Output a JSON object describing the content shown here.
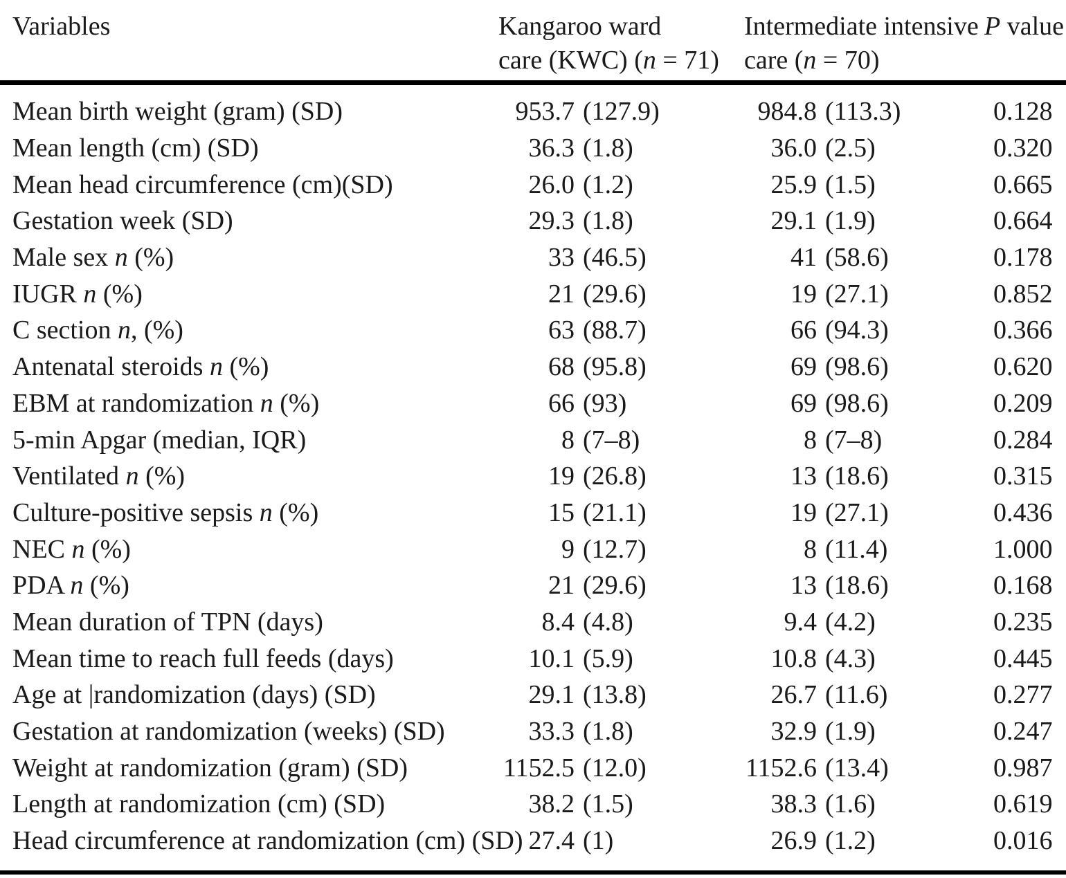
{
  "table": {
    "header": {
      "variables": "Variables",
      "kwc_line1": "Kangaroo ward",
      "kwc_line2_pre": "care (KWC) (",
      "kwc_n": "n",
      "kwc_line2_post": " = 71)",
      "iic_line1": "Intermediate intensive",
      "iic_line2_pre": "care (",
      "iic_n": "n",
      "iic_line2_post": " = 70)",
      "p_italic": "P",
      "p_rest": " value"
    },
    "rows": [
      {
        "label_pre": "Mean birth weight (gram) (SD)",
        "label_n": "",
        "label_post": "",
        "kwc_num": "953.7",
        "kwc_paren": "(127.9)",
        "iic_num": "984.8",
        "iic_paren": "(113.3)",
        "p": "0.128"
      },
      {
        "label_pre": "Mean length (cm) (SD)",
        "label_n": "",
        "label_post": "",
        "kwc_num": "36.3",
        "kwc_paren": "(1.8)",
        "iic_num": "36.0",
        "iic_paren": "(2.5)",
        "p": "0.320"
      },
      {
        "label_pre": "Mean head circumference (cm)(SD)",
        "label_n": "",
        "label_post": "",
        "kwc_num": "26.0",
        "kwc_paren": "(1.2)",
        "iic_num": "25.9",
        "iic_paren": "(1.5)",
        "p": "0.665"
      },
      {
        "label_pre": "Gestation week (SD)",
        "label_n": "",
        "label_post": "",
        "kwc_num": "29.3",
        "kwc_paren": "(1.8)",
        "iic_num": "29.1",
        "iic_paren": "(1.9)",
        "p": "0.664"
      },
      {
        "label_pre": "Male sex ",
        "label_n": "n",
        "label_post": " (%)",
        "kwc_num": "33",
        "kwc_paren": "(46.5)",
        "iic_num": "41",
        "iic_paren": "(58.6)",
        "p": "0.178"
      },
      {
        "label_pre": "IUGR ",
        "label_n": "n",
        "label_post": " (%)",
        "kwc_num": "21",
        "kwc_paren": "(29.6)",
        "iic_num": "19",
        "iic_paren": "(27.1)",
        "p": "0.852"
      },
      {
        "label_pre": "C section ",
        "label_n": "n",
        "label_post": ", (%)",
        "kwc_num": "63",
        "kwc_paren": "(88.7)",
        "iic_num": "66",
        "iic_paren": "(94.3)",
        "p": "0.366"
      },
      {
        "label_pre": "Antenatal steroids ",
        "label_n": "n",
        "label_post": " (%)",
        "kwc_num": "68",
        "kwc_paren": "(95.8)",
        "iic_num": "69",
        "iic_paren": "(98.6)",
        "p": "0.620"
      },
      {
        "label_pre": "EBM at randomization ",
        "label_n": "n",
        "label_post": " (%)",
        "kwc_num": "66",
        "kwc_paren": "(93)",
        "iic_num": "69",
        "iic_paren": "(98.6)",
        "p": "0.209"
      },
      {
        "label_pre": "5-min Apgar (median, IQR)",
        "label_n": "",
        "label_post": "",
        "kwc_num": "8",
        "kwc_paren": "(7–8)",
        "iic_num": "8",
        "iic_paren": "(7–8)",
        "p": "0.284"
      },
      {
        "label_pre": "Ventilated ",
        "label_n": "n",
        "label_post": " (%)",
        "kwc_num": "19",
        "kwc_paren": "(26.8)",
        "iic_num": "13",
        "iic_paren": "(18.6)",
        "p": "0.315"
      },
      {
        "label_pre": "Culture-positive sepsis ",
        "label_n": "n",
        "label_post": " (%)",
        "kwc_num": "15",
        "kwc_paren": "(21.1)",
        "iic_num": "19",
        "iic_paren": "(27.1)",
        "p": "0.436"
      },
      {
        "label_pre": "NEC ",
        "label_n": "n",
        "label_post": " (%)",
        "kwc_num": "9",
        "kwc_paren": "(12.7)",
        "iic_num": "8",
        "iic_paren": "(11.4)",
        "p": "1.000"
      },
      {
        "label_pre": "PDA ",
        "label_n": "n",
        "label_post": " (%)",
        "kwc_num": "21",
        "kwc_paren": "(29.6)",
        "iic_num": "13",
        "iic_paren": "(18.6)",
        "p": "0.168"
      },
      {
        "label_pre": "Mean duration of TPN (days)",
        "label_n": "",
        "label_post": "",
        "kwc_num": "8.4",
        "kwc_paren": "(4.8)",
        "iic_num": "9.4",
        "iic_paren": "(4.2)",
        "p": "0.235"
      },
      {
        "label_pre": "Mean time to reach full feeds (days)",
        "label_n": "",
        "label_post": "",
        "kwc_num": "10.1",
        "kwc_paren": "(5.9)",
        "iic_num": "10.8",
        "iic_paren": "(4.3)",
        "p": "0.445"
      },
      {
        "label_pre": "Age at |randomization (days) (SD)",
        "label_n": "",
        "label_post": "",
        "kwc_num": "29.1",
        "kwc_paren": "(13.8)",
        "iic_num": "26.7",
        "iic_paren": "(11.6)",
        "p": "0.277"
      },
      {
        "label_pre": "Gestation at randomization (weeks) (SD)",
        "label_n": "",
        "label_post": "",
        "kwc_num": "33.3",
        "kwc_paren": "(1.8)",
        "iic_num": "32.9",
        "iic_paren": "(1.9)",
        "p": "0.247"
      },
      {
        "label_pre": "Weight at randomization (gram) (SD)",
        "label_n": "",
        "label_post": "",
        "kwc_num": "1152.5",
        "kwc_paren": "(12.0)",
        "iic_num": "1152.6",
        "iic_paren": "(13.4)",
        "p": "0.987"
      },
      {
        "label_pre": "Length at randomization (cm) (SD)",
        "label_n": "",
        "label_post": "",
        "kwc_num": "38.2",
        "kwc_paren": "(1.5)",
        "iic_num": "38.3",
        "iic_paren": "(1.6)",
        "p": "0.619"
      },
      {
        "label_pre": "Head circumference at randomization (cm) (SD)",
        "label_n": "",
        "label_post": "",
        "kwc_num": "27.4",
        "kwc_paren": "(1)",
        "iic_num": "26.9",
        "iic_paren": "(1.2)",
        "p": "0.016"
      }
    ]
  },
  "colors": {
    "text": "#1a1a1a",
    "rule": "#000000",
    "background": "#ffffff"
  }
}
